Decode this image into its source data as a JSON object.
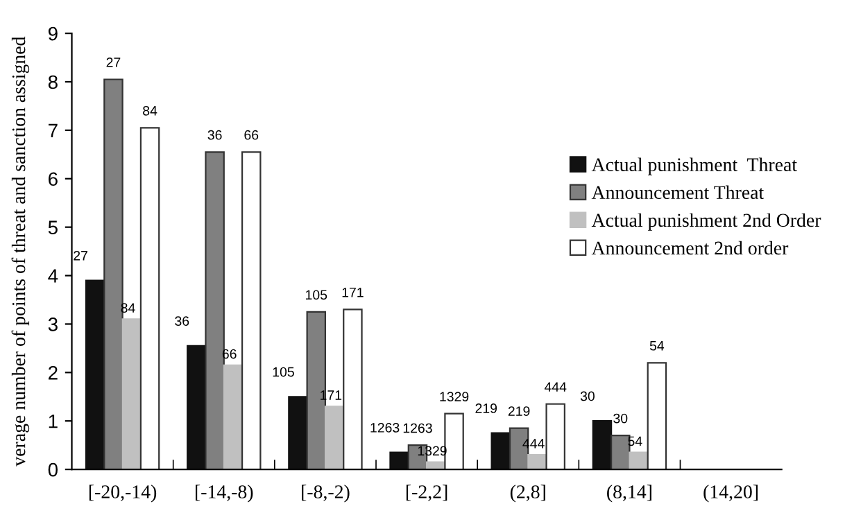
{
  "chart_data": {
    "type": "bar",
    "ylabel": "verage number of points of threat and sanction assigned",
    "categories": [
      "[-20,-14)",
      "[-14,-8)",
      "[-8,-2)",
      "[-2,2]",
      "(2,8]",
      "(8,14]",
      "(14,20]"
    ],
    "series": [
      {
        "name": "Actual punishment  Threat",
        "color": "#111111",
        "values": [
          3.9,
          2.55,
          1.5,
          0.35,
          0.75,
          1.0,
          null
        ]
      },
      {
        "name": "Announcement Threat",
        "color": "#808080",
        "values": [
          8.05,
          6.55,
          3.25,
          0.5,
          0.85,
          0.7,
          null
        ]
      },
      {
        "name": "Actual punishment 2nd Order",
        "color": "#c0c0c0",
        "values": [
          3.1,
          2.15,
          1.3,
          0.15,
          0.3,
          0.35,
          null
        ]
      },
      {
        "name": "Announcement 2nd order",
        "color": "#ffffff",
        "values": [
          7.05,
          6.55,
          3.3,
          1.15,
          1.35,
          2.2,
          null
        ]
      }
    ],
    "annotations": [
      "27",
      "27",
      "84",
      "84",
      "36",
      "36",
      "66",
      "66",
      "105",
      "105",
      "171",
      "171",
      "1263",
      "1263",
      "1329",
      "1329",
      "219",
      "219",
      "444",
      "444",
      "30",
      "30",
      "54",
      "54"
    ],
    "ylim": [
      0,
      9
    ],
    "yticks": [
      0,
      1,
      2,
      3,
      4,
      5,
      6,
      7,
      8,
      9
    ],
    "grid": false,
    "legend": "right"
  }
}
